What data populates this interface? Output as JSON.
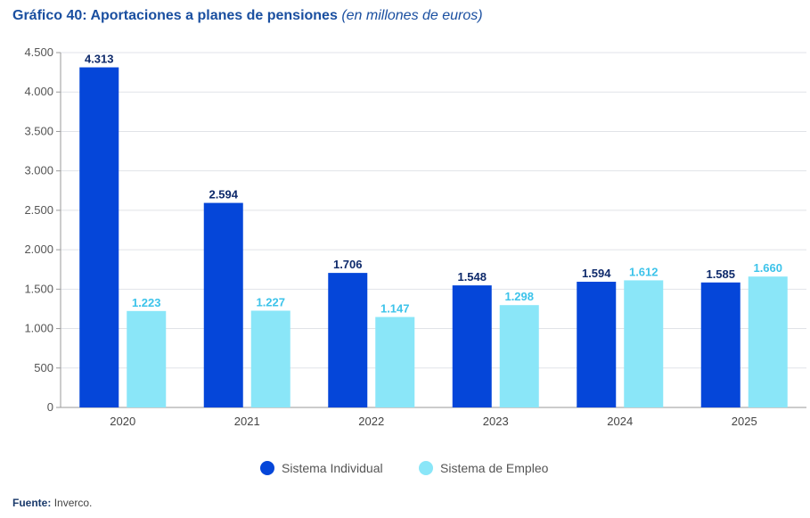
{
  "header": {
    "title_main": "Gráfico 40: Aportaciones a planes de pensiones",
    "title_sub": "(en millones de euros)"
  },
  "footer": {
    "source_label": "Fuente:",
    "source_value": "Inverco."
  },
  "colors": {
    "series_1": "#0546d9",
    "series_2": "#8ae6f8",
    "label_1": "#0e2a6b",
    "label_2": "#3cc3ea"
  },
  "chart_data": {
    "type": "bar",
    "categories": [
      "2020",
      "2021",
      "2022",
      "2023",
      "2024",
      "2025"
    ],
    "series": [
      {
        "name": "Sistema Individual",
        "values": [
          4313,
          2594,
          1706,
          1548,
          1594,
          1585
        ],
        "labels": [
          "4.313",
          "2.594",
          "1.706",
          "1.548",
          "1.594",
          "1.585"
        ]
      },
      {
        "name": "Sistema de Empleo",
        "values": [
          1223,
          1227,
          1147,
          1298,
          1612,
          1660
        ],
        "labels": [
          "1.223",
          "1.227",
          "1.147",
          "1.298",
          "1.612",
          "1.660"
        ]
      }
    ],
    "ylim": [
      0,
      4500
    ],
    "yticks": [
      0,
      500,
      1000,
      1500,
      2000,
      2500,
      3000,
      3500,
      4000,
      4500
    ],
    "ytick_labels": [
      "0",
      "500",
      "1.000",
      "1.500",
      "2.000",
      "2.500",
      "3.000",
      "3.500",
      "4.000",
      "4.500"
    ],
    "grid": true,
    "legend": "bottom-center"
  }
}
